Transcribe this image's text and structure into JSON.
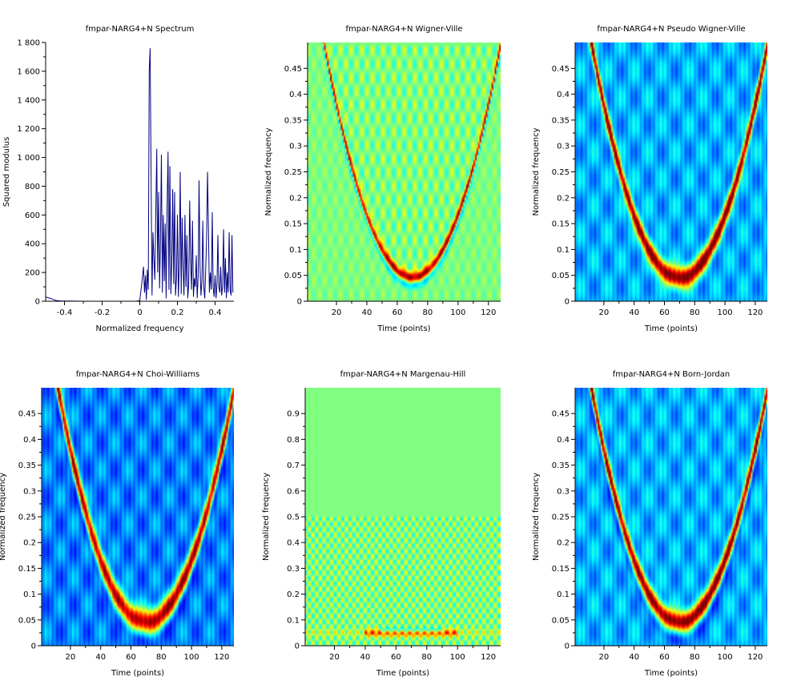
{
  "colors": {
    "line": "#000080",
    "axis": "#000000",
    "jet_low": "#00007f",
    "jet_mid": "#7fff7f",
    "jet_high": "#7f0000"
  },
  "chart_data": [
    {
      "type": "line",
      "title": "fmpar-NARG4+N Spectrum",
      "xlabel": "Normalized frequency",
      "ylabel": "Squared modulus",
      "xlim": [
        -0.5,
        0.5
      ],
      "ylim": [
        0,
        1800
      ],
      "xticks": [
        -0.4,
        -0.2,
        0,
        0.2,
        0.4
      ],
      "xtick_labels": [
        "-0.4",
        "-0.2",
        "0",
        "0.2",
        "0.4"
      ],
      "yticks": [
        0,
        200,
        400,
        600,
        800,
        1000,
        1200,
        1400,
        1600,
        1800
      ],
      "ytick_labels": [
        "0",
        "200",
        "400",
        "600",
        "800",
        "1 000",
        "1 200",
        "1 400",
        "1 600",
        "1 800"
      ],
      "x": [
        -0.5,
        -0.49,
        -0.48,
        -0.47,
        -0.46,
        -0.45,
        -0.44,
        -0.42,
        -0.38,
        -0.3,
        -0.2,
        -0.1,
        -0.05,
        -0.02,
        0.0,
        0.01,
        0.02,
        0.025,
        0.03,
        0.035,
        0.04,
        0.045,
        0.05,
        0.055,
        0.06,
        0.065,
        0.07,
        0.075,
        0.08,
        0.085,
        0.09,
        0.095,
        0.1,
        0.105,
        0.11,
        0.115,
        0.12,
        0.125,
        0.13,
        0.135,
        0.14,
        0.145,
        0.15,
        0.155,
        0.16,
        0.165,
        0.17,
        0.175,
        0.18,
        0.185,
        0.19,
        0.195,
        0.2,
        0.205,
        0.21,
        0.215,
        0.22,
        0.225,
        0.23,
        0.235,
        0.24,
        0.245,
        0.25,
        0.255,
        0.26,
        0.265,
        0.27,
        0.275,
        0.28,
        0.285,
        0.29,
        0.295,
        0.3,
        0.305,
        0.31,
        0.315,
        0.32,
        0.325,
        0.33,
        0.335,
        0.34,
        0.345,
        0.35,
        0.355,
        0.36,
        0.365,
        0.37,
        0.375,
        0.38,
        0.385,
        0.39,
        0.395,
        0.4,
        0.405,
        0.41,
        0.415,
        0.42,
        0.425,
        0.43,
        0.435,
        0.44,
        0.445,
        0.45,
        0.455,
        0.46,
        0.465,
        0.47,
        0.475,
        0.48,
        0.485,
        0.49,
        0.495
      ],
      "y": [
        30,
        25,
        22,
        18,
        12,
        8,
        4,
        2,
        1,
        0,
        0,
        0,
        0,
        0,
        5,
        120,
        240,
        60,
        180,
        10,
        220,
        80,
        1600,
        1760,
        900,
        40,
        480,
        300,
        150,
        620,
        1060,
        200,
        760,
        90,
        420,
        1020,
        60,
        600,
        140,
        540,
        20,
        660,
        1040,
        80,
        940,
        50,
        280,
        780,
        120,
        760,
        40,
        160,
        600,
        30,
        240,
        900,
        50,
        580,
        240,
        40,
        600,
        100,
        460,
        20,
        120,
        700,
        260,
        80,
        560,
        30,
        160,
        100,
        320,
        20,
        180,
        840,
        240,
        40,
        140,
        560,
        100,
        20,
        220,
        440,
        900,
        480,
        60,
        200,
        80,
        620,
        100,
        30,
        180,
        20,
        120,
        460,
        100,
        60,
        240,
        40,
        100,
        500,
        60,
        300,
        20,
        200,
        60,
        480,
        80,
        40,
        460,
        60
      ]
    },
    {
      "type": "heatmap",
      "title": "fmpar-NARG4+N Wigner-Ville",
      "xlabel": "Time (points)",
      "ylabel": "Normalized frequency",
      "xlim": [
        1,
        128
      ],
      "ylim": [
        0,
        0.5
      ],
      "xticks": [
        20,
        40,
        60,
        80,
        100,
        120
      ],
      "yticks": [
        0,
        0.05,
        0.1,
        0.15,
        0.2,
        0.25,
        0.3,
        0.35,
        0.4,
        0.45
      ],
      "ytick_labels": [
        "0",
        "0.05",
        "0.1",
        "0.15",
        "0.2",
        "0.25",
        "0.3",
        "0.35",
        "0.4",
        "0.45"
      ],
      "colormap": "jet",
      "background_level": 0.5
    },
    {
      "type": "heatmap",
      "title": "fmpar-NARG4+N Pseudo Wigner-Ville",
      "xlabel": "Time (points)",
      "ylabel": "Normalized frequency",
      "xlim": [
        1,
        128
      ],
      "ylim": [
        0,
        0.5
      ],
      "xticks": [
        20,
        40,
        60,
        80,
        100,
        120
      ],
      "yticks": [
        0,
        0.05,
        0.1,
        0.15,
        0.2,
        0.25,
        0.3,
        0.35,
        0.4,
        0.45
      ],
      "ytick_labels": [
        "0",
        "0.05",
        "0.1",
        "0.15",
        "0.2",
        "0.25",
        "0.3",
        "0.35",
        "0.4",
        "0.45"
      ],
      "colormap": "jet",
      "background_level": 0.3
    },
    {
      "type": "heatmap",
      "title": "fmpar-NARG4+N Choi-Williams",
      "xlabel": "Time (points)",
      "ylabel": "Normalized frequency",
      "xlim": [
        1,
        128
      ],
      "ylim": [
        0,
        0.5
      ],
      "xticks": [
        20,
        40,
        60,
        80,
        100,
        120
      ],
      "yticks": [
        0,
        0.05,
        0.1,
        0.15,
        0.2,
        0.25,
        0.3,
        0.35,
        0.4,
        0.45
      ],
      "ytick_labels": [
        "0",
        "0.05",
        "0.1",
        "0.15",
        "0.2",
        "0.25",
        "0.3",
        "0.35",
        "0.4",
        "0.45"
      ],
      "colormap": "jet",
      "background_level": 0.25
    },
    {
      "type": "heatmap",
      "title": "fmpar-NARG4+N Margenau-Hill",
      "xlabel": "Time (points)",
      "ylabel": "Normalized frequency",
      "xlim": [
        1,
        128
      ],
      "ylim": [
        0,
        1
      ],
      "xticks": [
        20,
        40,
        60,
        80,
        100,
        120
      ],
      "yticks": [
        0,
        0.1,
        0.2,
        0.3,
        0.4,
        0.5,
        0.6,
        0.7,
        0.8,
        0.9
      ],
      "ytick_labels": [
        "0",
        "0.1",
        "0.2",
        "0.3",
        "0.4",
        "0.5",
        "0.6",
        "0.7",
        "0.8",
        "0.9"
      ],
      "colormap": "jet",
      "background_level": 0.5
    },
    {
      "type": "heatmap",
      "title": "fmpar-NARG4+N Born-Jordan",
      "xlabel": "Time (points)",
      "ylabel": "Normalized frequency",
      "xlim": [
        1,
        128
      ],
      "ylim": [
        0,
        0.5
      ],
      "xticks": [
        20,
        40,
        60,
        80,
        100,
        120
      ],
      "yticks": [
        0,
        0.05,
        0.1,
        0.15,
        0.2,
        0.25,
        0.3,
        0.35,
        0.4,
        0.45
      ],
      "ytick_labels": [
        "0",
        "0.05",
        "0.1",
        "0.15",
        "0.2",
        "0.25",
        "0.3",
        "0.35",
        "0.4",
        "0.45"
      ],
      "colormap": "jet",
      "background_level": 0.3
    }
  ]
}
